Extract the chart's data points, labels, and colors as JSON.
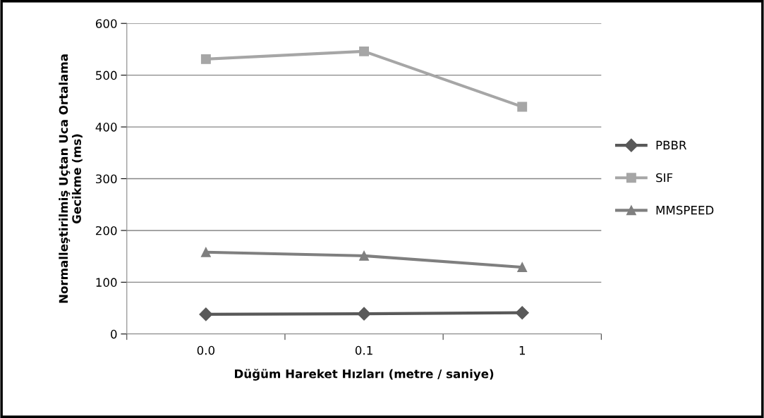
{
  "chart_data": {
    "type": "line",
    "xlabel": "Düğüm Hareket Hızları (metre / saniye)",
    "ylabel": "Normalleştirilmiş Uçtan Uca Ortalama\nGecikme (ms)",
    "categories": [
      "0.0",
      "0.1",
      "1"
    ],
    "series": [
      {
        "name": "PBBR",
        "color": "#595959",
        "marker": "diamond",
        "values": [
          38,
          39,
          41
        ]
      },
      {
        "name": "SIF",
        "color": "#a6a6a6",
        "marker": "square",
        "values": [
          531,
          546,
          439
        ]
      },
      {
        "name": "MMSPEED",
        "color": "#7f7f7f",
        "marker": "triangle",
        "values": [
          158,
          151,
          129
        ]
      }
    ],
    "ylim": [
      0,
      600
    ],
    "yticks": [
      0,
      100,
      200,
      300,
      400,
      500,
      600
    ],
    "grid": "y",
    "legend": "right",
    "line_style": "solid"
  }
}
